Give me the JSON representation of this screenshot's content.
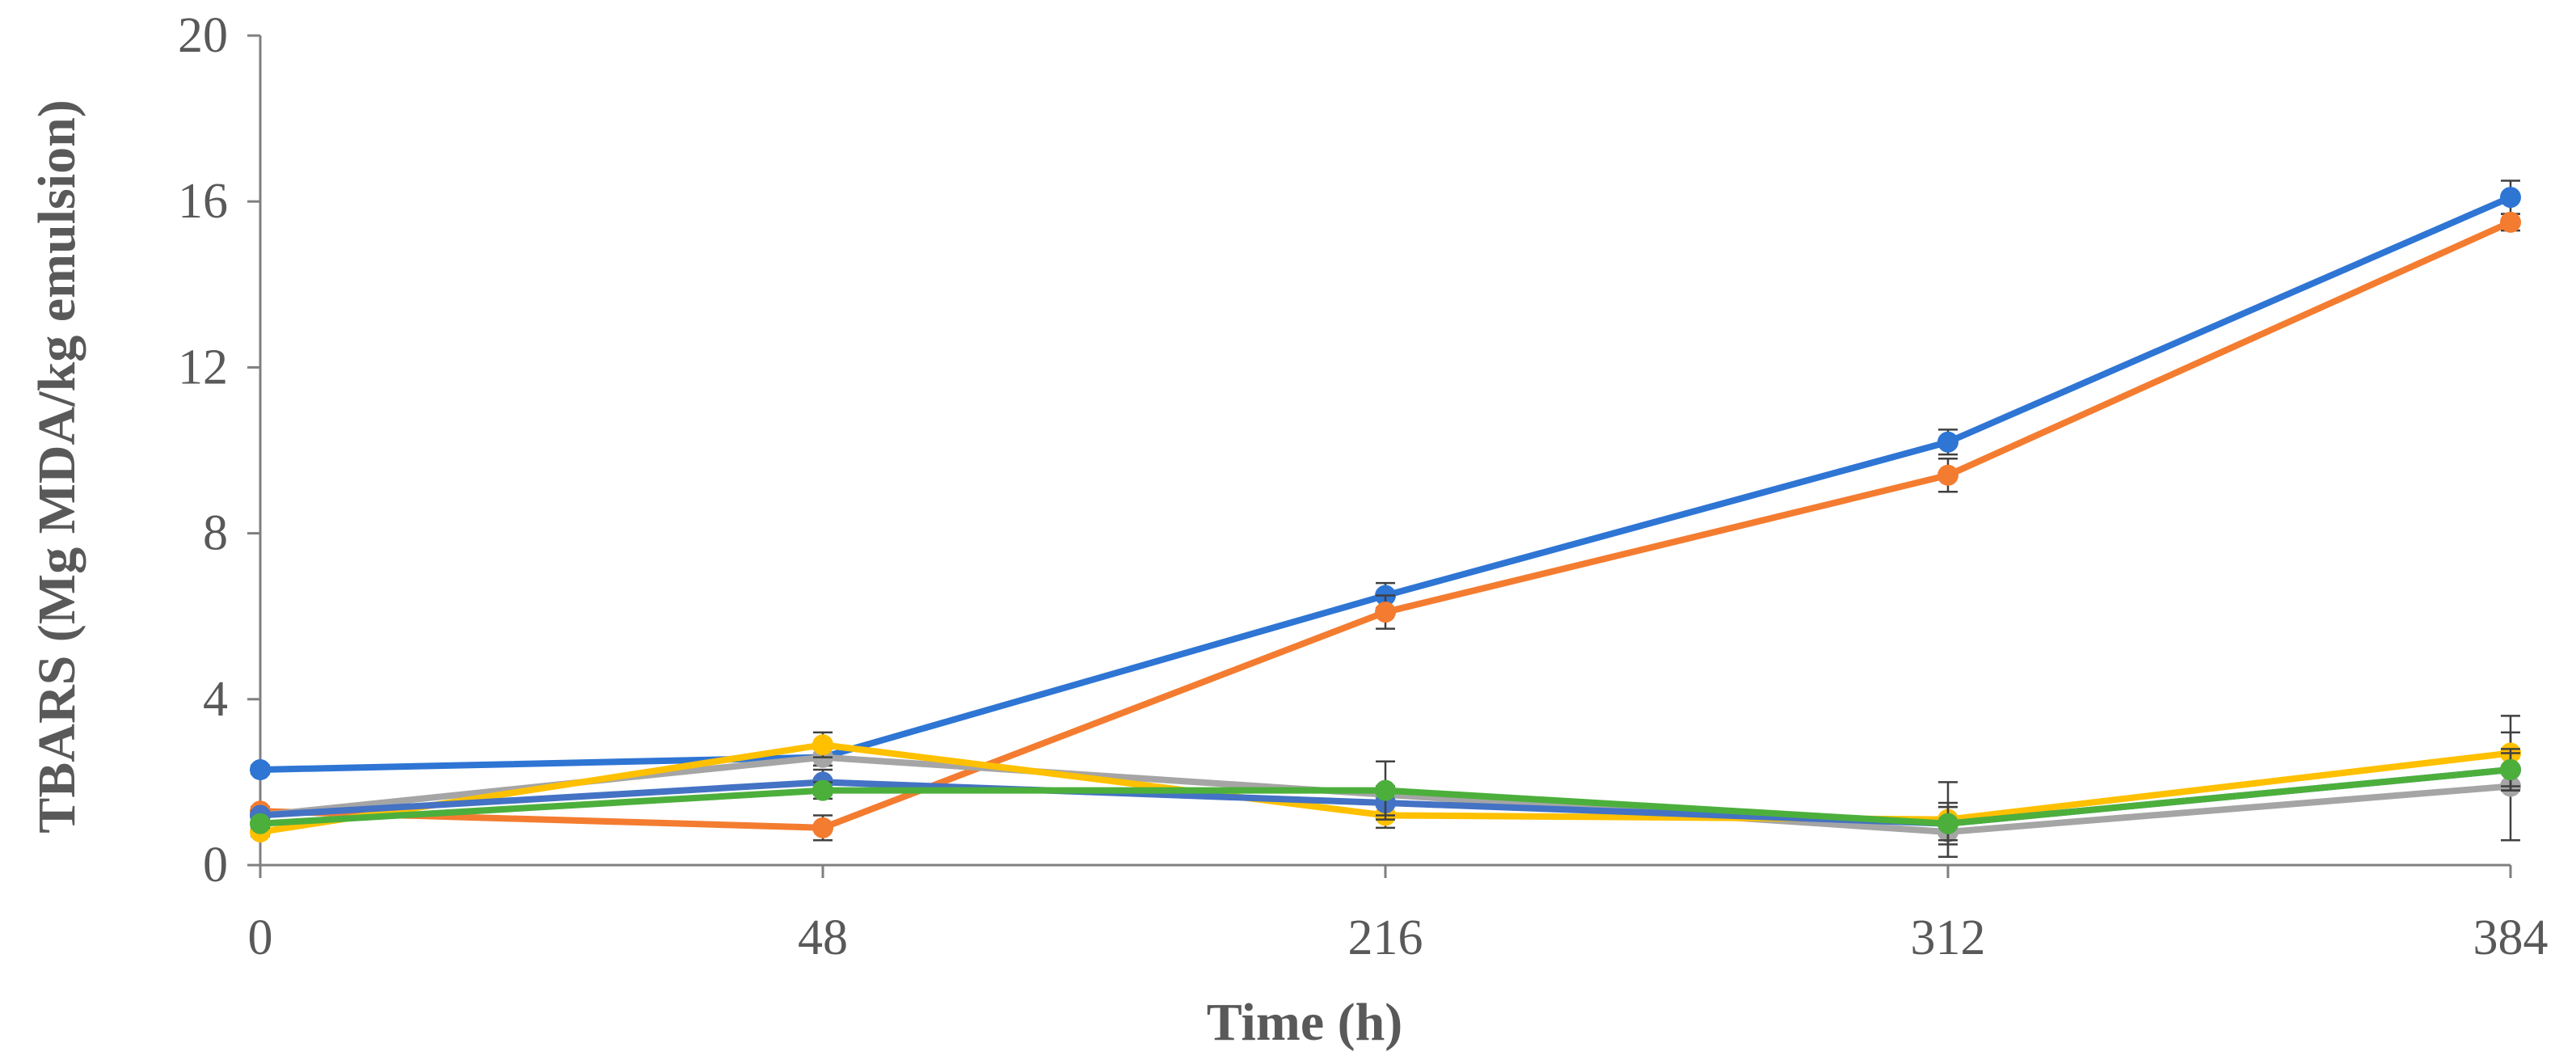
{
  "chart_data": {
    "type": "line",
    "title": "",
    "xlabel": "Time (h)",
    "ylabel": "TBARS (Mg MDA/kg emulsion)",
    "categories": [
      "0",
      "48",
      "216",
      "312",
      "384"
    ],
    "ylim": [
      0,
      20
    ],
    "yticks": [
      0,
      4,
      8,
      12,
      16,
      20
    ],
    "grid": false,
    "legend": "none",
    "series": [
      {
        "name": "Series 1",
        "color": "#2E75D4",
        "values": [
          2.3,
          2.6,
          6.5,
          10.2,
          16.1
        ],
        "errors": [
          0.1,
          0.2,
          0.3,
          0.3,
          0.4
        ]
      },
      {
        "name": "Series 2",
        "color": "#F47C30",
        "values": [
          1.3,
          0.9,
          6.1,
          9.4,
          15.5
        ],
        "errors": [
          0.1,
          0.3,
          0.4,
          0.4,
          0.2
        ]
      },
      {
        "name": "Series 3",
        "color": "#A5A5A5",
        "values": [
          1.2,
          2.6,
          1.7,
          0.8,
          1.9
        ],
        "errors": [
          0.1,
          0.2,
          0.2,
          0.6,
          1.3
        ]
      },
      {
        "name": "Series 4",
        "color": "#FFC000",
        "values": [
          0.8,
          2.9,
          1.2,
          1.1,
          2.7
        ],
        "errors": [
          0.1,
          0.3,
          0.3,
          0.9,
          0.9
        ]
      },
      {
        "name": "Series 5",
        "color": "#4472C4",
        "values": [
          1.2,
          2.0,
          1.5,
          1.0,
          2.3
        ],
        "errors": [
          0.1,
          0.3,
          0.3,
          0.4,
          0.5
        ]
      },
      {
        "name": "Series 6",
        "color": "#4CAF3C",
        "values": [
          1.0,
          1.8,
          1.8,
          1.0,
          2.3
        ],
        "errors": [
          0.1,
          0.2,
          0.7,
          0.5,
          0.4
        ]
      }
    ]
  }
}
